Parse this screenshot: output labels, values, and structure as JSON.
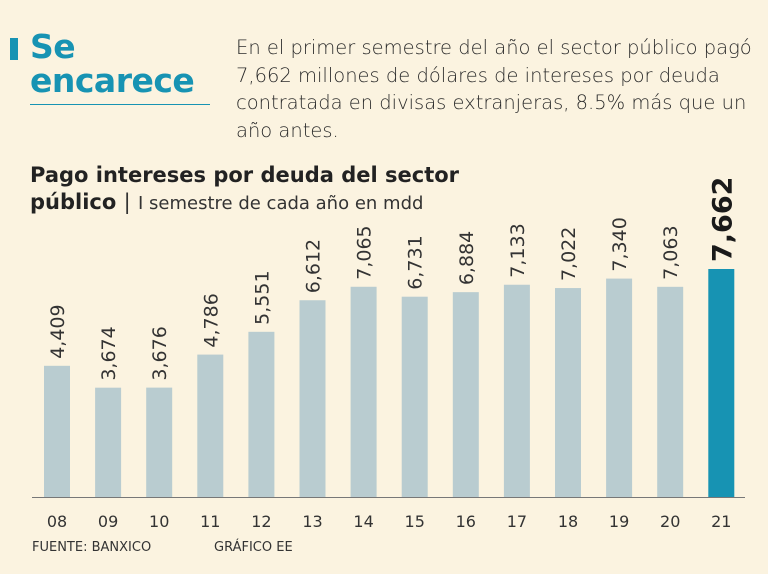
{
  "header": {
    "title_line1": "Se",
    "title_line2": "encarece",
    "intro": "En el primer semestre del año el sector público pagó 7,662 millones de dólares de intereses por deuda contratada en divisas extranjeras, 8.5% más que un año antes."
  },
  "chart_title": {
    "bold_line1": "Pago intereses por deuda del sector",
    "bold_line2": "público",
    "separator": "|",
    "subtitle": "I semestre de cada año en mdd"
  },
  "chart_data": {
    "type": "bar",
    "title": "Pago intereses por deuda del sector público",
    "subtitle": "I semestre de cada año en mdd",
    "xlabel": "",
    "ylabel": "",
    "categories": [
      "08",
      "09",
      "10",
      "11",
      "12",
      "13",
      "14",
      "15",
      "16",
      "17",
      "18",
      "19",
      "20",
      "21"
    ],
    "values": [
      4409,
      3674,
      3676,
      4786,
      5551,
      6612,
      7065,
      6731,
      6884,
      7133,
      7022,
      7340,
      7063,
      7662
    ],
    "value_labels": [
      "4,409",
      "3,674",
      "3,676",
      "4,786",
      "5,551",
      "6,612",
      "7,065",
      "6,731",
      "6,884",
      "7,133",
      "7,022",
      "7,340",
      "7,063",
      "7,662"
    ],
    "ylim": [
      0,
      7662
    ],
    "grid": false,
    "highlight_index": 13,
    "colors": {
      "bar": "#b9ccd0",
      "highlight": "#1793b3",
      "axis": "#777777",
      "label": "#333333",
      "highlight_label": "#1a1a1a"
    }
  },
  "footer": {
    "source": "FUENTE: BANXICO",
    "credit": "GRÁFICO EE"
  }
}
